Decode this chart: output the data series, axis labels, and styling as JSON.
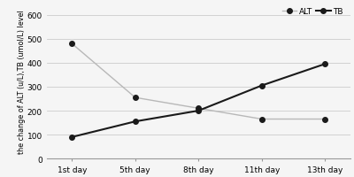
{
  "x_labels": [
    "1st day",
    "5th day",
    "8th day",
    "11th day",
    "13th day"
  ],
  "x_values": [
    0,
    1,
    2,
    3,
    4
  ],
  "alt_values": [
    480,
    255,
    210,
    165,
    165
  ],
  "tb_values": [
    90,
    155,
    200,
    305,
    395
  ],
  "ylim": [
    0,
    650
  ],
  "yticks": [
    0,
    100,
    200,
    300,
    400,
    500,
    600
  ],
  "ylabel": "the change of ALT (u/L),TB (umol/L) level",
  "alt_color": "#b8b8b8",
  "tb_color": "#1a1a1a",
  "marker": "o",
  "alt_linestyle": "-",
  "tb_linestyle": "-",
  "legend_alt": "ALT",
  "legend_tb": "TB",
  "background_color": "#f5f5f5",
  "grid_color": "#cccccc",
  "tick_fontsize": 6.5,
  "ylabel_fontsize": 5.8,
  "legend_fontsize": 6.5,
  "alt_linewidth": 1.0,
  "tb_linewidth": 1.5,
  "markersize": 4
}
